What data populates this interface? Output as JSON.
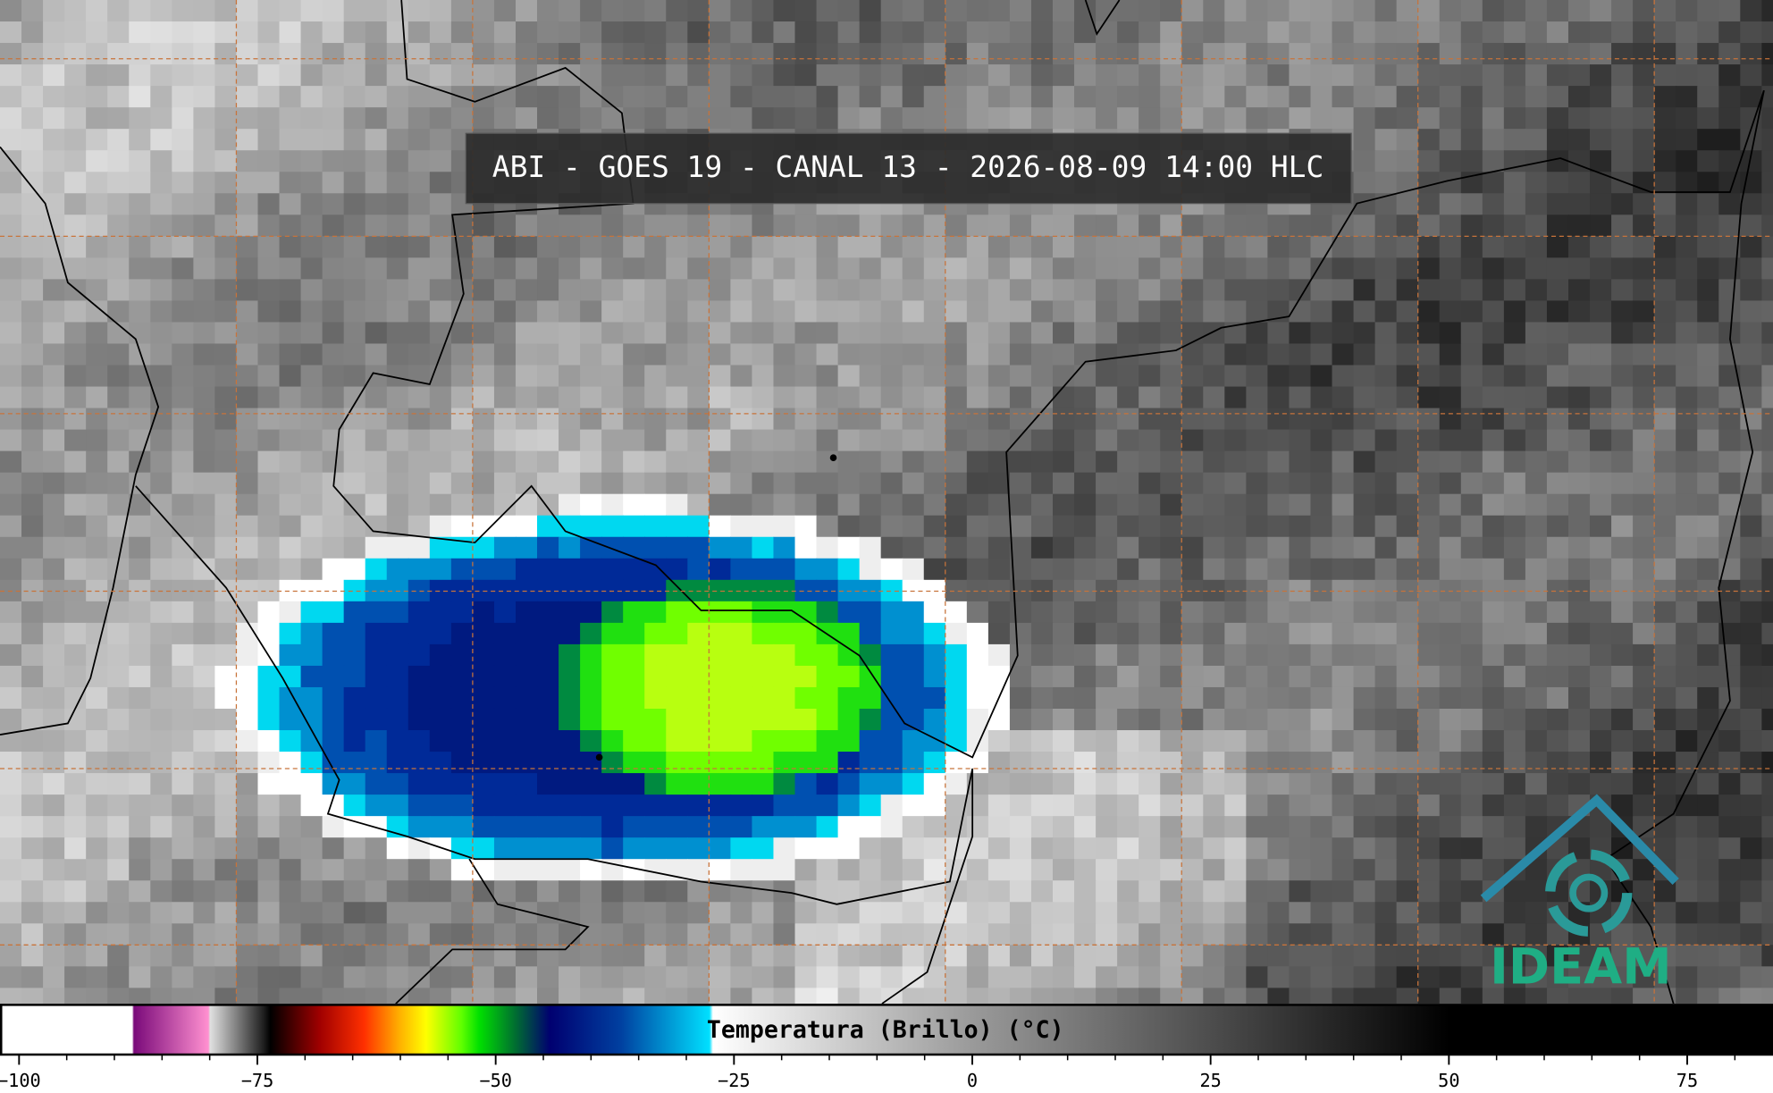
{
  "header": {
    "title": "ABI - GOES 19 - CANAL 13 - 2026-08-09 14:00 HLC"
  },
  "colorbar": {
    "label": "Temperatura (Brillo) (°C)",
    "xlim": [
      -102,
      84
    ],
    "ticks": [
      {
        "value": -100,
        "label": "−100"
      },
      {
        "value": -75,
        "label": "−75"
      },
      {
        "value": -50,
        "label": "−50"
      },
      {
        "value": -25,
        "label": "−25"
      },
      0,
      25,
      50,
      75
    ],
    "minor_ticks": [
      -95,
      -90,
      -85,
      -80,
      -70,
      -65,
      -60,
      -55,
      -45,
      -40,
      -35,
      -30,
      -20,
      -15,
      -10,
      -5,
      5,
      10,
      15,
      20,
      30,
      35,
      40,
      45,
      55,
      60,
      65,
      70,
      80
    ]
  },
  "logo": {
    "text": "IDEAM"
  }
}
